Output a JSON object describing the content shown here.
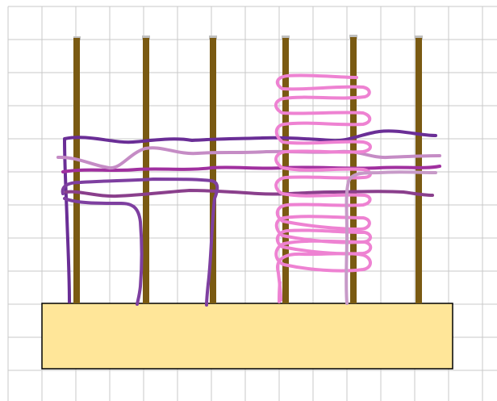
{
  "colors": {
    "background": "#ffffff",
    "grid": "#c8c8c8",
    "base_fill": "#ffe699",
    "base_stroke": "#000000",
    "peg": "#7a5a12",
    "peg_cap": "#c0c0c0",
    "yarn_dark_purple": "#6a2e96",
    "yarn_magenta": "#a0309f",
    "yarn_mauve": "#c58cc5",
    "yarn_plum": "#8a3f8c",
    "yarn_violet": "#7e3fa0",
    "yarn_pink": "#ee82d2",
    "yarn_light_mauve": "#c79ac8"
  },
  "peg_count": 6,
  "yarn_strand_count": 9
}
